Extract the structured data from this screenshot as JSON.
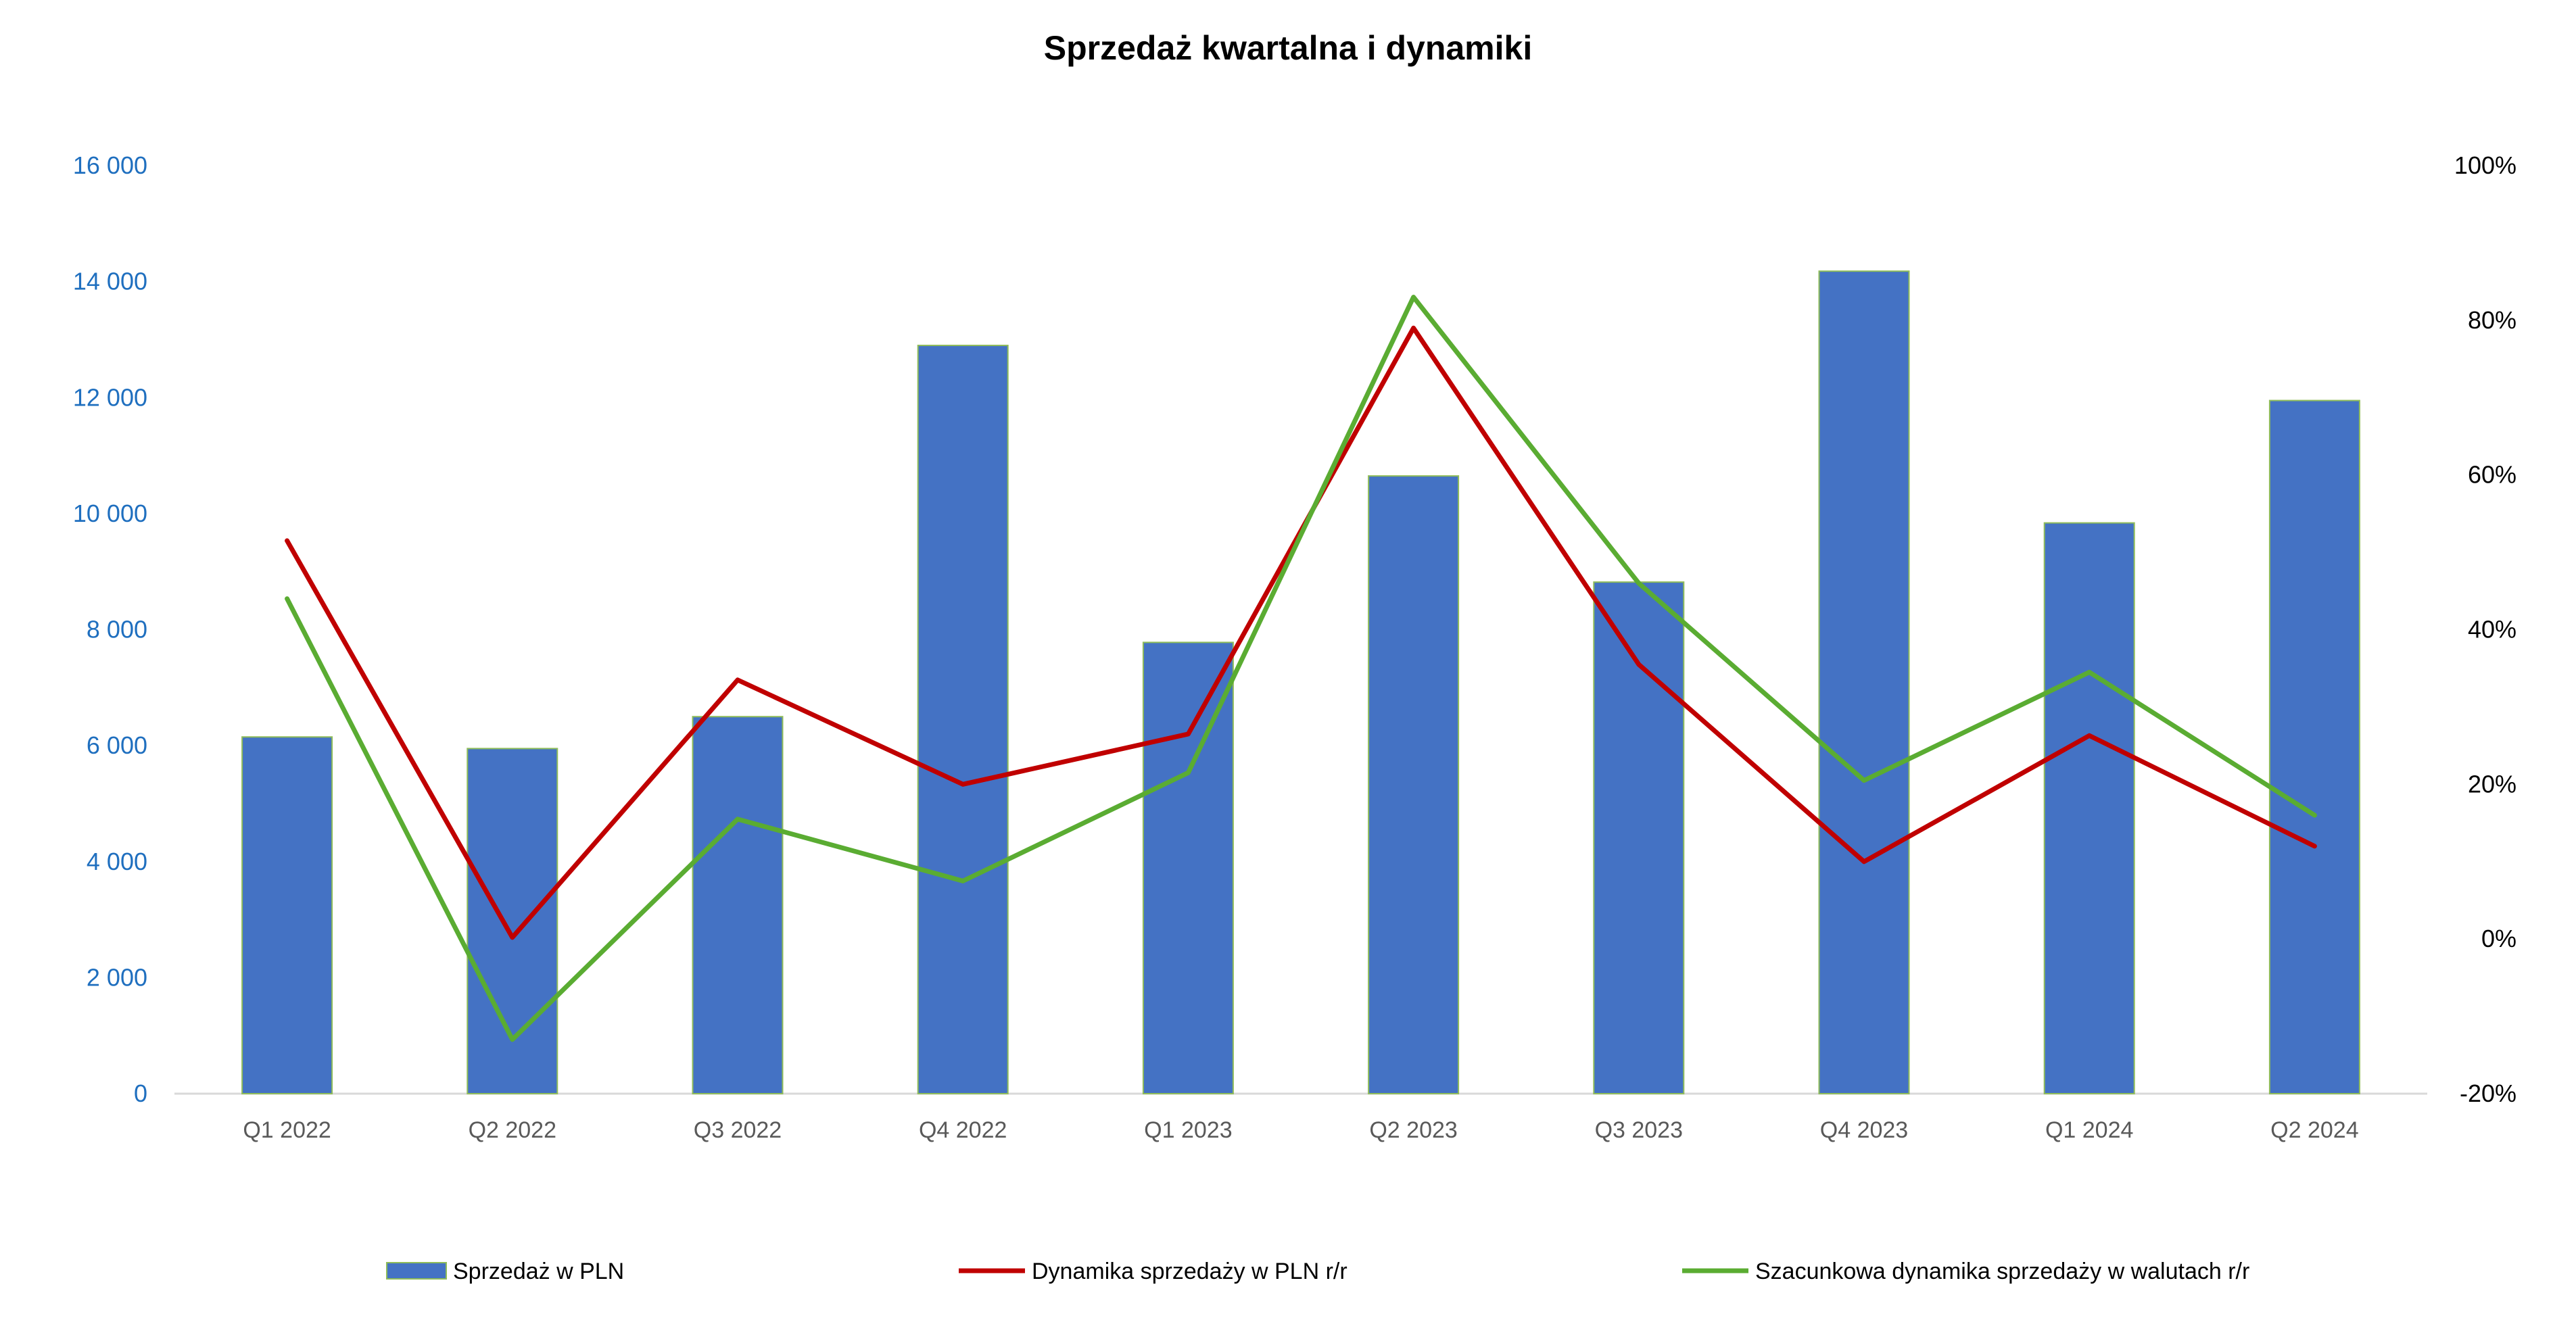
{
  "chart_data": {
    "type": "bar",
    "title": "Sprzedaż kwartalna i dynamiki",
    "categories": [
      "Q1 2022",
      "Q2 2022",
      "Q3 2022",
      "Q4 2022",
      "Q1 2023",
      "Q2 2023",
      "Q3 2023",
      "Q4 2023",
      "Q1 2024",
      "Q2 2024"
    ],
    "y_left": {
      "ylim": [
        0,
        16000
      ],
      "ticks": [
        0,
        2000,
        4000,
        6000,
        8000,
        10000,
        12000,
        14000,
        16000
      ],
      "tick_labels": [
        "0",
        "2 000",
        "4 000",
        "6 000",
        "8 000",
        "10 000",
        "12 000",
        "14 000",
        "16 000"
      ]
    },
    "y_right": {
      "ylim": [
        -20,
        100
      ],
      "ticks": [
        -20,
        0,
        20,
        40,
        60,
        80,
        100
      ],
      "tick_labels": [
        "-20%",
        "0%",
        "20%",
        "40%",
        "60%",
        "80%",
        "100%"
      ]
    },
    "series": [
      {
        "name": "Sprzedaż w PLN",
        "type": "bar",
        "axis": "left",
        "color": "#4472c4",
        "border_color": "#8fbc5a",
        "values": [
          6150,
          5950,
          6500,
          12900,
          7780,
          10650,
          8820,
          14180,
          9840,
          11950
        ]
      },
      {
        "name": "Dynamika sprzedaży w PLN r/r",
        "type": "line",
        "axis": "right",
        "color": "#c00000",
        "values": [
          51.5,
          0.2,
          33.5,
          20.0,
          26.5,
          79.0,
          35.5,
          10.0,
          26.3,
          12.0
        ]
      },
      {
        "name": "Szacunkowa dynamika sprzedaży w walutach r/r",
        "type": "line",
        "axis": "right",
        "color": "#5aac32",
        "values": [
          44.0,
          -13.0,
          15.5,
          7.5,
          21.5,
          83.0,
          46.0,
          20.5,
          34.5,
          16.0
        ]
      }
    ],
    "grid": false,
    "legend_position": "bottom"
  }
}
